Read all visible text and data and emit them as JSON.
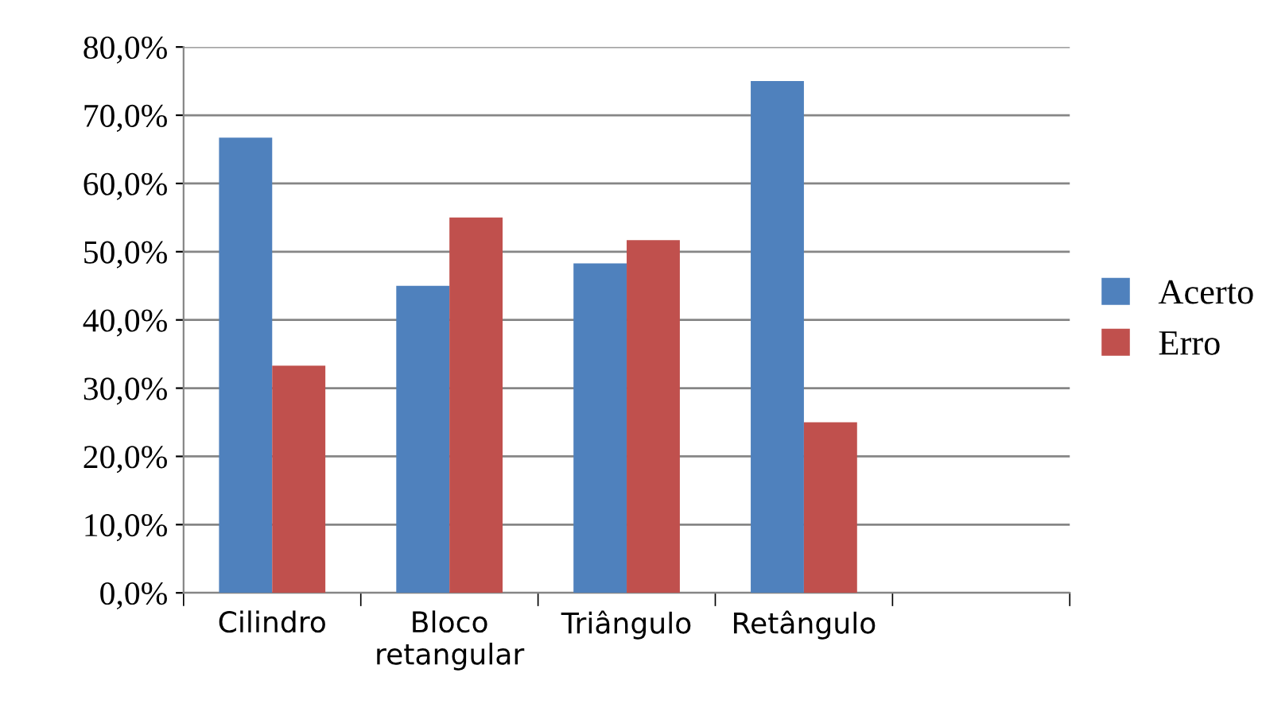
{
  "chart_data": {
    "type": "bar",
    "categories": [
      "Cilindro",
      "Bloco\nretangular",
      "Triângulo",
      "Retângulo",
      null
    ],
    "series": [
      {
        "name": "Acerto",
        "color": "#4f81bd",
        "values": [
          66.7,
          45.0,
          48.3,
          75.0,
          null
        ]
      },
      {
        "name": "Erro",
        "color": "#c0504d",
        "values": [
          33.3,
          55.0,
          51.7,
          25.0,
          null
        ]
      }
    ],
    "ylim": [
      0,
      80
    ],
    "yticks": [
      {
        "value": 0,
        "label": "0,0%"
      },
      {
        "value": 10,
        "label": "10,0%"
      },
      {
        "value": 20,
        "label": "20,0%"
      },
      {
        "value": 30,
        "label": "30,0%"
      },
      {
        "value": 40,
        "label": "40,0%"
      },
      {
        "value": 50,
        "label": "50,0%"
      },
      {
        "value": 60,
        "label": "60,0%"
      },
      {
        "value": 70,
        "label": "70,0%"
      },
      {
        "value": 80,
        "label": "80,0%"
      }
    ],
    "grid": "y",
    "legend": "right"
  }
}
